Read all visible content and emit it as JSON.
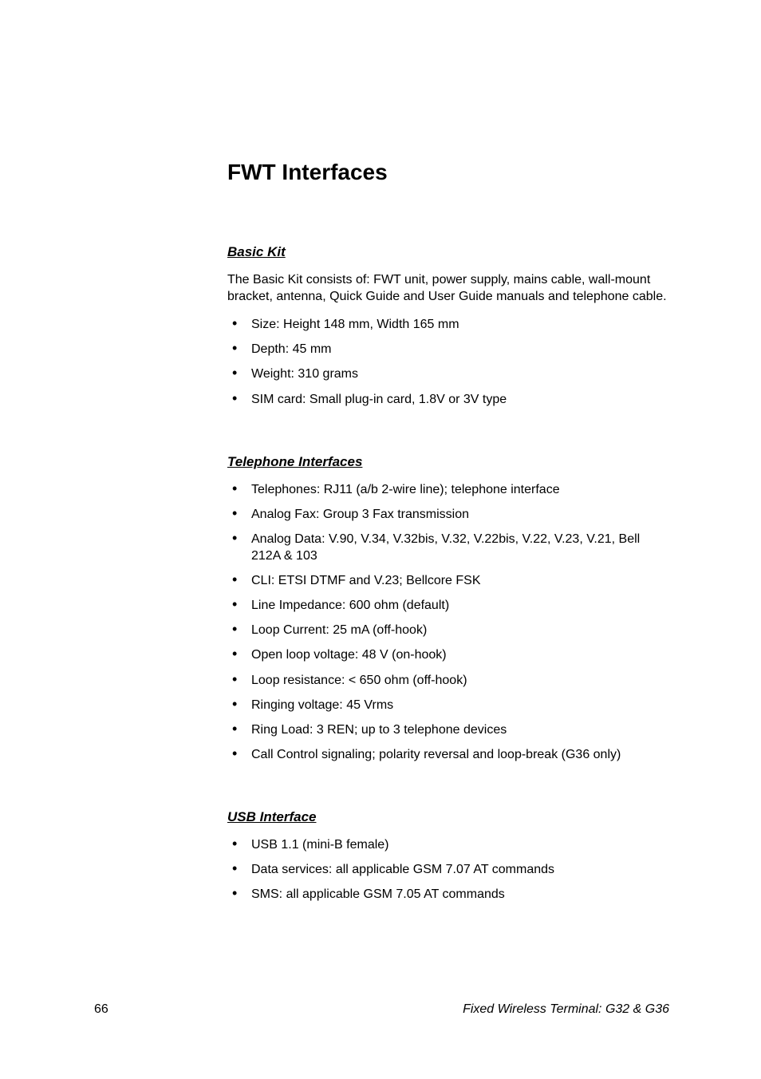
{
  "title": "FWT Interfaces",
  "sections": {
    "basic_kit": {
      "heading": "Basic Kit",
      "intro": "The Basic Kit consists of: FWT unit, power supply, mains cable, wall-mount bracket, antenna, Quick Guide and User Guide manuals and telephone cable.",
      "items": [
        "Size: Height 148 mm, Width 165 mm",
        "Depth: 45 mm",
        "Weight: 310 grams",
        "SIM card: Small plug-in card, 1.8V or 3V type"
      ]
    },
    "telephone": {
      "heading": "Telephone Interfaces",
      "items": [
        "Telephones: RJ11 (a/b 2-wire line); telephone interface",
        "Analog Fax: Group 3 Fax transmission",
        "Analog Data: V.90, V.34, V.32bis, V.32, V.22bis, V.22, V.23, V.21, Bell 212A & 103",
        "CLI: ETSI DTMF and V.23; Bellcore FSK",
        "Line Impedance: 600 ohm (default)",
        "Loop Current: 25 mA (off-hook)",
        "Open loop voltage: 48 V (on-hook)",
        "Loop resistance: < 650 ohm (off-hook)",
        "Ringing voltage: 45 Vrms",
        "Ring Load: 3 REN; up to 3 telephone devices",
        "Call Control signaling; polarity reversal and loop-break (G36 only)"
      ]
    },
    "usb": {
      "heading": "USB Interface",
      "items": [
        "USB 1.1 (mini-B female)",
        "Data services: all applicable GSM 7.07 AT commands",
        "SMS: all applicable GSM 7.05 AT commands"
      ]
    }
  },
  "footer": {
    "page_number": "66",
    "doc_title": "Fixed Wireless Terminal: G32 & G36"
  }
}
